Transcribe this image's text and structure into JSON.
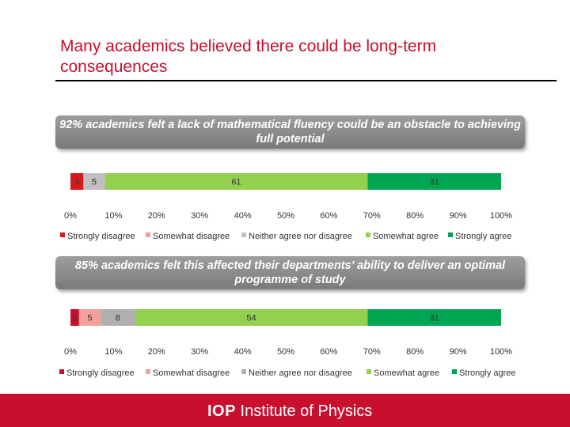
{
  "slide": {
    "title": "Many academics believed there could be long-term consequences",
    "footer_logo_mark": "IOP",
    "footer_logo_text": "Institute of Physics",
    "accent_color": "#c8102e"
  },
  "chart_data": [
    {
      "type": "bar",
      "orientation": "horizontal-stacked-100",
      "title": "92% academics felt a lack of mathematical fluency could be an obstacle to achieving full potential",
      "series": [
        {
          "name": "Strongly disagree",
          "value": 3,
          "color": "#d7191c"
        },
        {
          "name": "Somewhat disagree",
          "value": 0,
          "color": "#f4a09a"
        },
        {
          "name": "Neither agree nor disagree",
          "value": 5,
          "color": "#c0c0c0"
        },
        {
          "name": "Somewhat agree",
          "value": 61,
          "color": "#92d050"
        },
        {
          "name": "Strongly agree",
          "value": 31,
          "color": "#00a651"
        }
      ],
      "xlim": [
        0,
        100
      ],
      "ticks": [
        "0%",
        "10%",
        "20%",
        "30%",
        "40%",
        "50%",
        "60%",
        "70%",
        "80%",
        "90%",
        "100%"
      ],
      "legend_position": "bottom"
    },
    {
      "type": "bar",
      "orientation": "horizontal-stacked-100",
      "title": "85% academics felt this affected their departments’ ability to deliver an optimal programme of study",
      "series": [
        {
          "name": "Strongly disagree",
          "value": 2,
          "color": "#c8102e"
        },
        {
          "name": "Somewhat disagree",
          "value": 5,
          "color": "#f4a09a"
        },
        {
          "name": "Neither agree nor disagree",
          "value": 8,
          "color": "#b0b0b0"
        },
        {
          "name": "Somewhat agree",
          "value": 54,
          "color": "#92d050"
        },
        {
          "name": "Strongly agree",
          "value": 31,
          "color": "#00a651"
        }
      ],
      "xlim": [
        0,
        100
      ],
      "ticks": [
        "0%",
        "10%",
        "20%",
        "30%",
        "40%",
        "50%",
        "60%",
        "70%",
        "80%",
        "90%",
        "100%"
      ],
      "legend_position": "bottom"
    }
  ]
}
